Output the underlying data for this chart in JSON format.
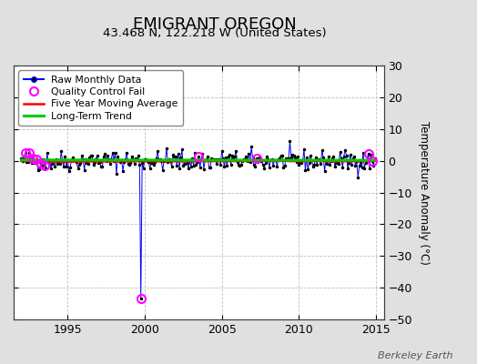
{
  "title": "EMIGRANT OREGON",
  "subtitle": "43.468 N, 122.218 W (United States)",
  "ylabel": "Temperature Anomaly (°C)",
  "credit": "Berkeley Earth",
  "xlim": [
    1991.5,
    2015.5
  ],
  "ylim": [
    -50,
    30
  ],
  "yticks": [
    -50,
    -40,
    -30,
    -20,
    -10,
    0,
    10,
    20,
    30
  ],
  "xticks": [
    1995,
    2000,
    2005,
    2010,
    2015
  ],
  "fig_bg_color": "#e0e0e0",
  "plot_bg_color": "#ffffff",
  "raw_color": "#0000ff",
  "dot_color": "#000000",
  "qc_color": "#ff00ff",
  "mavg_color": "#ff0000",
  "trend_color": "#00cc00",
  "trend_lw": 2.2,
  "mavg_lw": 1.8,
  "raw_lw": 0.7,
  "seed": 42,
  "n_points": 276,
  "x_start": 1992.0,
  "x_step": 0.08333,
  "spike_x": 1999.75,
  "spike_y": -43.5,
  "title_fontsize": 13,
  "subtitle_fontsize": 9.5,
  "ylabel_fontsize": 8.5,
  "tick_fontsize": 9,
  "legend_fontsize": 7.8
}
